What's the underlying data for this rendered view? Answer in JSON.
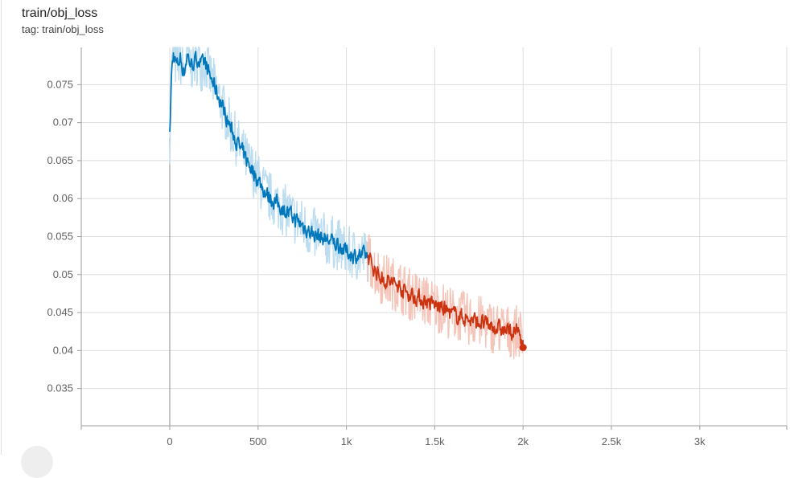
{
  "card": {
    "title": "train/obj_loss",
    "subtitle": "tag: train/obj_loss"
  },
  "colors": {
    "series1": "#0077bb",
    "series1_raw": "#bcdcef",
    "series2": "#cc3311",
    "series2_raw": "#f4c4b8",
    "grid": "#dddddd",
    "axis": "#9e9e9e"
  },
  "chart_data": {
    "type": "line",
    "title": "train/obj_loss",
    "xlabel": "",
    "ylabel": "",
    "xlim": [
      -500,
      3500
    ],
    "ylim": [
      0.0301,
      0.0799
    ],
    "x_ticks": [
      0,
      500,
      1000,
      1500,
      2000,
      2500,
      3000
    ],
    "x_tick_labels": [
      "0",
      "500",
      "1k",
      "1.5k",
      "2k",
      "2.5k",
      "3k"
    ],
    "y_ticks": [
      0.035,
      0.04,
      0.045,
      0.05,
      0.055,
      0.06,
      0.065,
      0.07,
      0.075
    ],
    "y_tick_labels": [
      "0.035",
      "0.04",
      "0.045",
      "0.05",
      "0.055",
      "0.06",
      "0.065",
      "0.07",
      "0.075"
    ],
    "grid": true,
    "legend": "none",
    "series": [
      {
        "x": [
          0,
          10,
          20,
          40,
          60,
          80,
          100,
          120,
          140,
          160,
          180,
          200,
          220,
          250,
          300,
          350,
          400,
          450,
          500,
          550,
          600,
          650,
          700,
          750,
          800,
          850,
          900,
          950,
          1000,
          1050,
          1100,
          1120
        ],
        "y": [
          0.068,
          0.0765,
          0.079,
          0.0775,
          0.0785,
          0.0765,
          0.079,
          0.0775,
          0.078,
          0.0785,
          0.0775,
          0.078,
          0.0765,
          0.075,
          0.072,
          0.069,
          0.0665,
          0.0645,
          0.0625,
          0.0605,
          0.0595,
          0.0585,
          0.0575,
          0.0565,
          0.0555,
          0.055,
          0.0545,
          0.054,
          0.053,
          0.0525,
          0.0525,
          0.0525
        ]
      },
      {
        "x": [
          1120,
          1150,
          1200,
          1250,
          1300,
          1350,
          1400,
          1450,
          1500,
          1550,
          1600,
          1650,
          1700,
          1750,
          1800,
          1850,
          1900,
          1950,
          1980,
          2000
        ],
        "y": [
          0.0525,
          0.051,
          0.0495,
          0.049,
          0.0485,
          0.0475,
          0.047,
          0.0465,
          0.046,
          0.0455,
          0.0448,
          0.0445,
          0.044,
          0.0438,
          0.0433,
          0.043,
          0.0426,
          0.0424,
          0.0425,
          0.0404
        ]
      }
    ]
  }
}
